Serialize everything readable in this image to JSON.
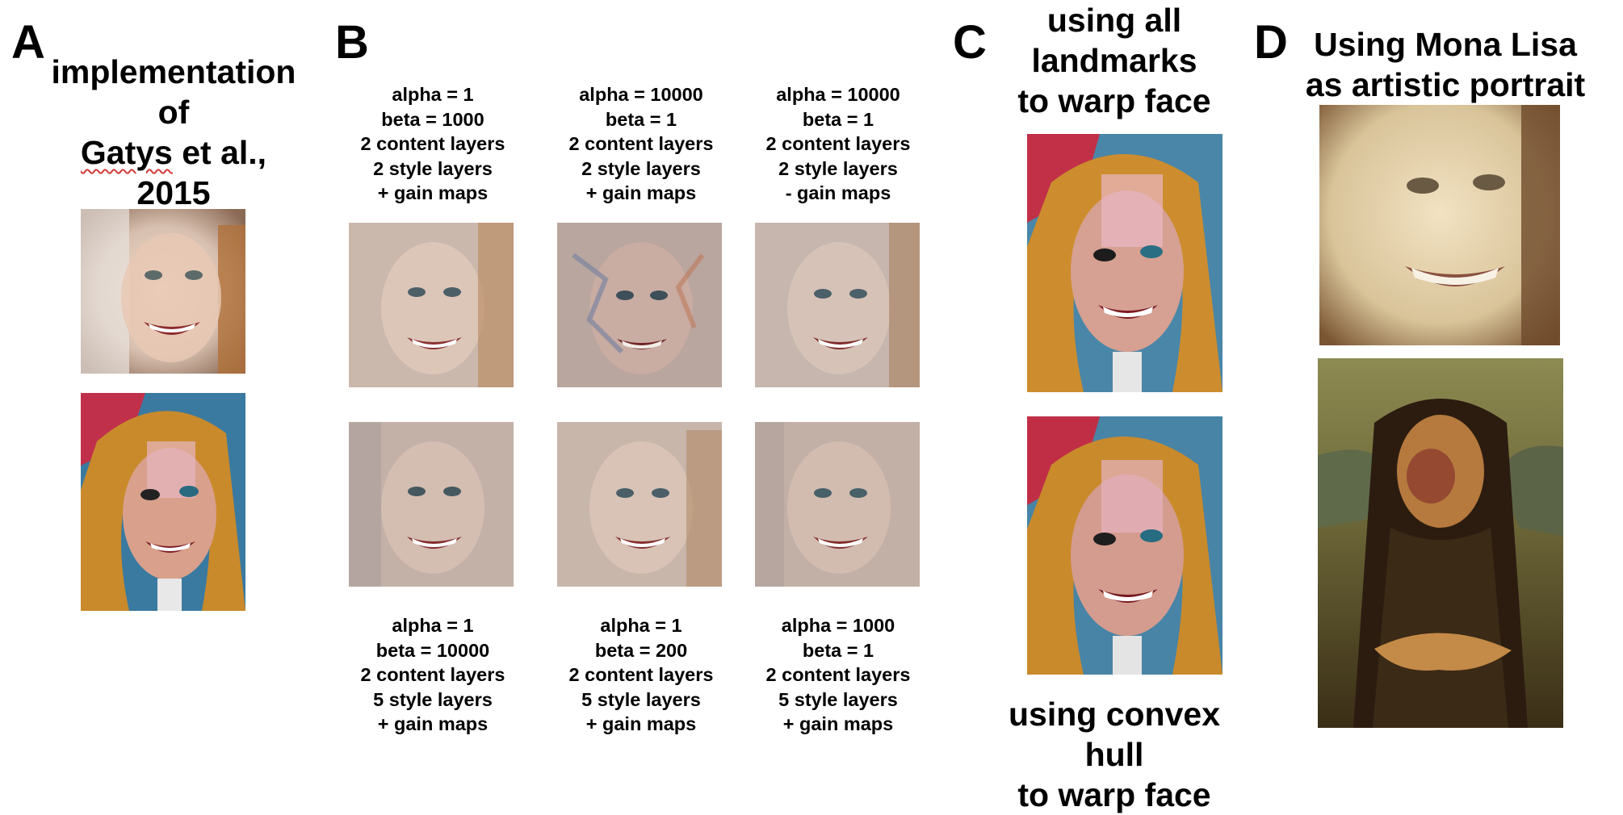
{
  "panels": {
    "A": {
      "letter": "A",
      "title_line1": "implementation",
      "title_line2": "of",
      "title_line3_underlined": "Gatys",
      "title_line3_rest": " et al.,",
      "title_line4": "2015"
    },
    "B": {
      "letter": "B",
      "top_captions": [
        "alpha = 1\nbeta = 1000\n2 content layers\n2 style layers\n+ gain maps",
        "alpha = 10000\nbeta = 1\n2 content layers\n2 style layers\n+ gain maps",
        "alpha = 10000\nbeta = 1\n2 content layers\n2 style layers\n- gain maps"
      ],
      "bottom_captions": [
        "alpha = 1\nbeta = 10000\n2 content layers\n5 style layers\n+ gain maps",
        "alpha = 1\nbeta = 200\n2 content layers\n5 style layers\n+ gain maps",
        "alpha = 1000\nbeta = 1\n2 content layers\n5 style layers\n+ gain maps"
      ]
    },
    "C": {
      "letter": "C",
      "top_title": "using all\nlandmarks\nto warp face",
      "bottom_title": "using convex\nhull\nto warp face"
    },
    "D": {
      "letter": "D",
      "title": "Using Mona Lisa\nas artistic portrait"
    }
  },
  "colors": {
    "background": "#ffffff",
    "text": "#000000",
    "spellcheck_underline": "#d23a3a"
  }
}
